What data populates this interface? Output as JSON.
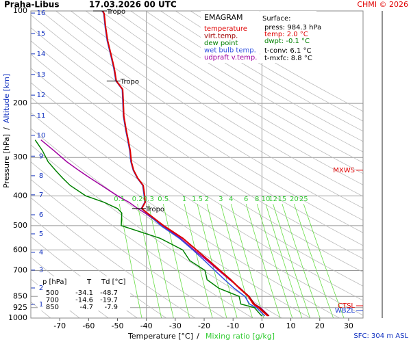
{
  "chart_data": {
    "type": "emagram",
    "title": "Praha-Libus",
    "subtitle": "17.03.2026 00 UTC",
    "credit": "CHMI © 2026",
    "legend_title": "EMAGRAM",
    "xlabel": "Temperature [°C]",
    "xlabel_sep": "/",
    "x2label": "Mixing ratio [g/kg]",
    "ylabel": "Pressure [hPa]",
    "ylabel_sep": "/",
    "y2label": "Altitude [km]",
    "xlim": [
      -80,
      35
    ],
    "xticks": [
      -70,
      -60,
      -50,
      -40,
      -30,
      -20,
      -10,
      0,
      10,
      20,
      30
    ],
    "xgrid": [
      -40,
      0
    ],
    "ylim": [
      100,
      1000
    ],
    "ylog": true,
    "yticks": [
      100,
      200,
      300,
      400,
      500,
      600,
      700,
      850,
      925,
      1000
    ],
    "altitude_ticks": [
      {
        "value": 101.6,
        "label": "16"
      },
      {
        "value": 118.4,
        "label": "15"
      },
      {
        "value": 138,
        "label": "14"
      },
      {
        "value": 161,
        "label": "13"
      },
      {
        "value": 188,
        "label": "12"
      },
      {
        "value": 219,
        "label": "11"
      },
      {
        "value": 254,
        "label": "10"
      },
      {
        "value": 297,
        "label": "9"
      },
      {
        "value": 344,
        "label": "8"
      },
      {
        "value": 397,
        "label": "7"
      },
      {
        "value": 461,
        "label": "6"
      },
      {
        "value": 532,
        "label": "5"
      },
      {
        "value": 611,
        "label": "4"
      },
      {
        "value": 698,
        "label": "3"
      },
      {
        "value": 798,
        "label": "2"
      },
      {
        "value": 903,
        "label": "1"
      }
    ],
    "mixing_ratios": [
      0.1,
      0.2,
      0.3,
      0.5,
      1,
      1.5,
      2,
      3,
      4,
      6,
      8,
      10,
      12,
      15,
      20,
      25
    ],
    "pressure": [
      984.3,
      925,
      900,
      850,
      800,
      750,
      700,
      650,
      600,
      550,
      500,
      455,
      440,
      420,
      400,
      370,
      350,
      330,
      310,
      285,
      263,
      244,
      220,
      198,
      180,
      169,
      154,
      139,
      125,
      113,
      102,
      100
    ],
    "series": [
      {
        "name": "temperature",
        "color": "#e00000",
        "values": [
          2.0,
          -1.2,
          -3.0,
          -4.7,
          -7.8,
          -10.9,
          -14.6,
          -18.4,
          -22.7,
          -27.4,
          -34.1,
          -39.7,
          -41.6,
          -40.4,
          -40.6,
          -41.1,
          -43.0,
          -44.4,
          -45.2,
          -45.6,
          -46.3,
          -47.0,
          -47.8,
          -48.0,
          -48.2,
          -50.4,
          -51.1,
          -52.2,
          -53.4,
          -54.1,
          -54.6,
          -55.1
        ]
      },
      {
        "name": "virt.temp.",
        "color": "#a00000",
        "values": [
          2.4,
          -0.8,
          -2.6,
          -4.4,
          -7.6,
          -10.7,
          -14.4,
          -18.3,
          -22.6,
          -27.3,
          -34.0,
          -39.7,
          -41.6,
          -40.4,
          -40.6,
          -41.1,
          -43.0,
          -44.4,
          -45.2,
          -45.6,
          -46.3,
          -47.0,
          -47.8,
          -48.0,
          -48.2,
          -50.4,
          -51.1,
          -52.2,
          -53.4,
          -54.1,
          -54.6,
          -55.1
        ]
      },
      {
        "name": "dew point",
        "color": "#008000",
        "values": [
          -0.1,
          -2.6,
          -7.3,
          -7.9,
          -14.9,
          -19.0,
          -19.7,
          -25.0,
          -27.4,
          -35.2,
          -48.7,
          -48.5,
          -50.0,
          -54.6,
          -61.0,
          -66.4,
          -69.0,
          -71.5,
          -74.0,
          -76.0,
          -78.5,
          null,
          null,
          null,
          null,
          null,
          null,
          null,
          null,
          null,
          null,
          null
        ]
      },
      {
        "name": "wet bulb temp.",
        "color": "#3050e0",
        "values": [
          1.0,
          -1.9,
          -4.3,
          -5.9,
          -9.6,
          -12.9,
          -16.3,
          -19.9,
          -23.9,
          -28.6,
          -35.0,
          -39.9,
          -41.8,
          -40.6,
          -40.8,
          -41.3,
          -43.2,
          -44.6,
          -45.4,
          -45.8,
          -46.5,
          -47.2,
          -48.0,
          -48.2,
          -48.4,
          -50.6,
          -51.3,
          -52.4,
          -53.6,
          -54.3,
          -54.8,
          -55.3
        ]
      },
      {
        "name": "udpraft v.temp.",
        "color": "#a000a0",
        "values": [
          2.5,
          -0.5,
          -2.5,
          -4.5,
          -7.5,
          -11.2,
          -15.0,
          -19.0,
          -23.5,
          -28.2,
          -34.5,
          -40.5,
          -43.0,
          -46.0,
          -50.0,
          -55.5,
          -59.5,
          -63.5,
          -67.5,
          -72.0,
          -76.5,
          null,
          null,
          null,
          null,
          null,
          null,
          null,
          null,
          null,
          null,
          null
        ]
      }
    ],
    "annotations": [
      {
        "text": "Tropo",
        "pressure": 100
      },
      {
        "text": "Tropo",
        "pressure": 169
      },
      {
        "text": "Tropo",
        "pressure": 440
      }
    ],
    "markers": [
      {
        "text": "MXWS",
        "pressure": 330,
        "color": "#e00000"
      },
      {
        "text": "CTSL",
        "pressure": 912,
        "color": "#e00000"
      },
      {
        "text": "WBZL",
        "pressure": 945,
        "color": "#2040d0"
      }
    ],
    "surface": {
      "title": "Surface:",
      "lines": [
        {
          "text": "press: 984.3 hPa",
          "color": "#000000"
        },
        {
          "text": "temp: 2.0 °C",
          "color": "#e00000"
        },
        {
          "text": "dwpt: -0.1 °C",
          "color": "#008000"
        },
        {
          "text": "t-conv: 6.1 °C",
          "color": "#000000"
        },
        {
          "text": "t-mxfc: 8.8 °C",
          "color": "#000000"
        }
      ]
    },
    "table": {
      "header": [
        "p [hPa]",
        "T",
        "Td [°C]"
      ],
      "rows": [
        [
          500,
          -34.1,
          -48.7
        ],
        [
          700,
          -14.6,
          -19.7
        ],
        [
          850,
          -4.7,
          -7.9
        ]
      ]
    },
    "footer": "SFC: 304 m ASL"
  }
}
